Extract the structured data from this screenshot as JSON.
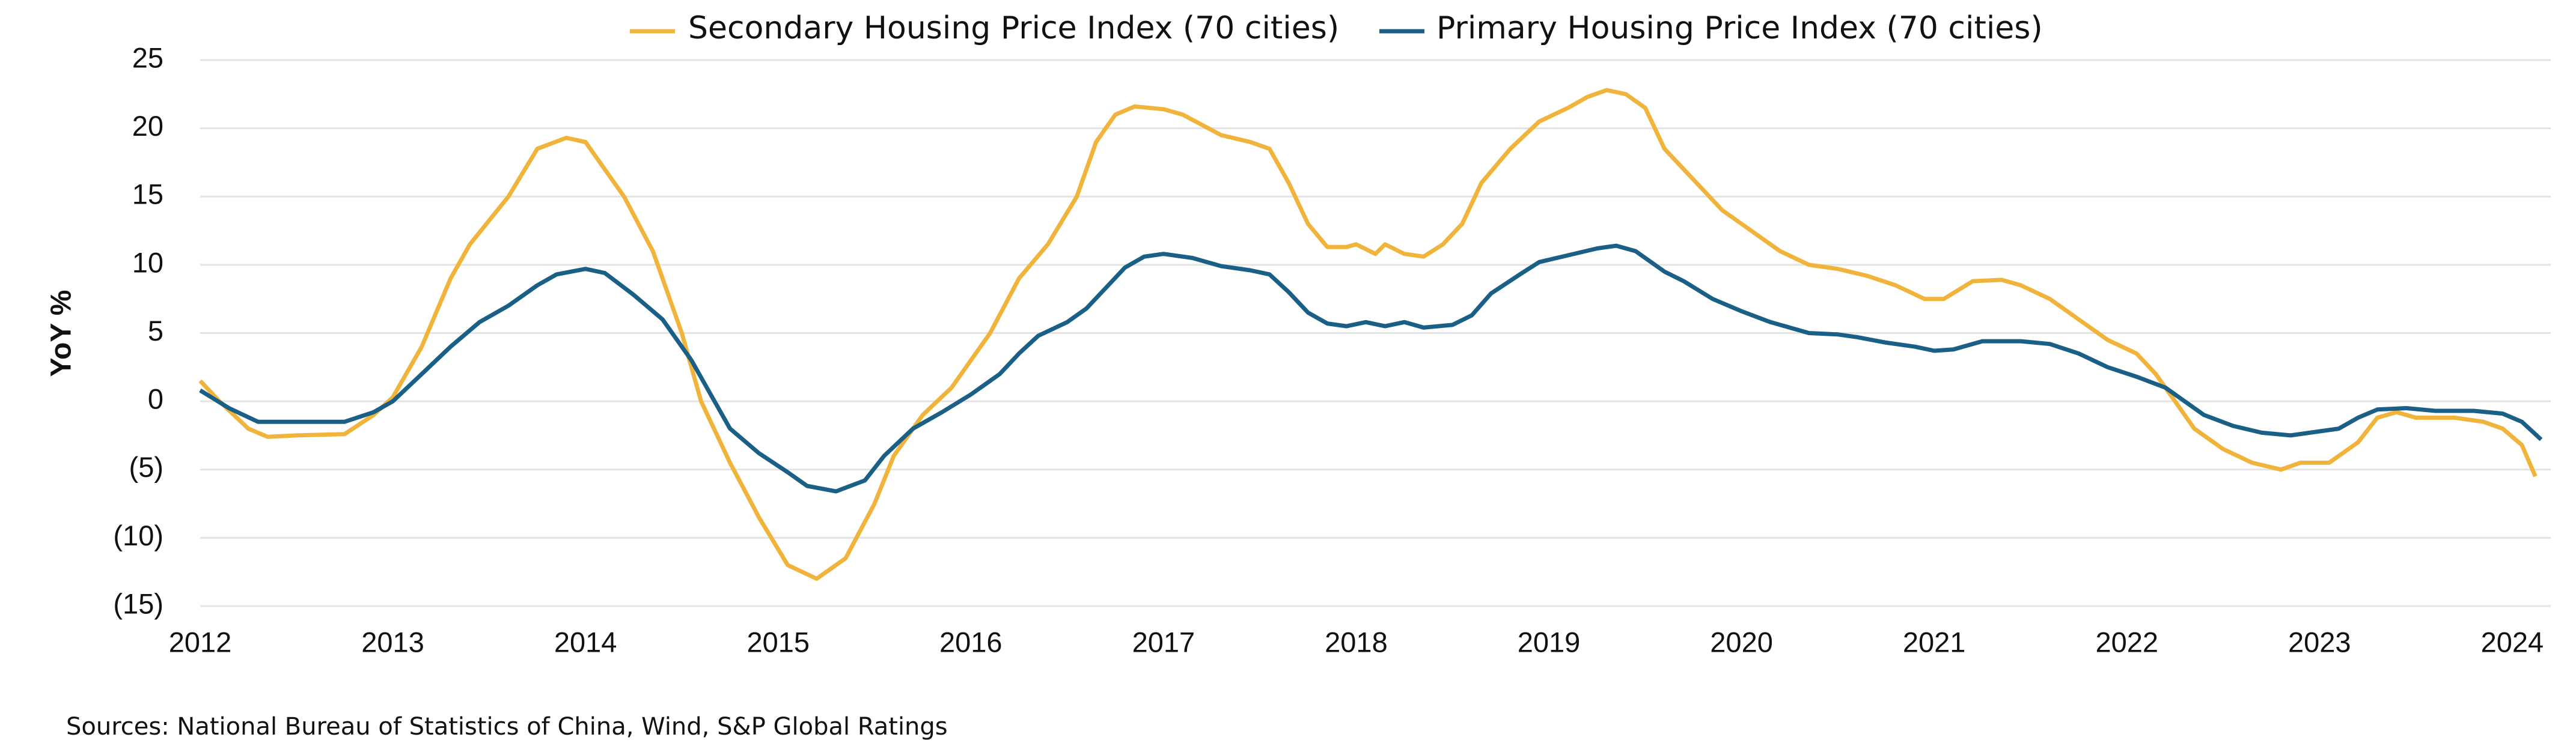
{
  "chart_data": {
    "type": "line",
    "ylabel": "YoY %",
    "source": "Sources: National Bureau of Statistics of China, Wind, S&P Global Ratings",
    "xlim": [
      2012,
      2024.2
    ],
    "xticks": [
      2012,
      2013,
      2014,
      2015,
      2016,
      2017,
      2018,
      2019,
      2020,
      2021,
      2022,
      2023,
      2024
    ],
    "ylim": [
      -15,
      25
    ],
    "yticks": [
      25,
      20,
      15,
      10,
      5,
      0,
      {
        "value": -5,
        "label": "(5)"
      },
      {
        "value": -10,
        "label": "(10)"
      },
      {
        "value": -15,
        "label": "(15)"
      }
    ],
    "grid": true,
    "legend": "top",
    "series": [
      {
        "name": "Secondary Housing Price Index (70 cities)",
        "color": "#f0b43c",
        "x": [
          2012.0,
          2012.1,
          2012.25,
          2012.35,
          2012.5,
          2012.75,
          2012.9,
          2013.0,
          2013.15,
          2013.3,
          2013.4,
          2013.6,
          2013.75,
          2013.9,
          2014.0,
          2014.1,
          2014.2,
          2014.35,
          2014.5,
          2014.6,
          2014.75,
          2014.9,
          2015.05,
          2015.2,
          2015.35,
          2015.5,
          2015.6,
          2015.75,
          2015.9,
          2016.1,
          2016.25,
          2016.4,
          2016.55,
          2016.65,
          2016.75,
          2016.85,
          2017.0,
          2017.1,
          2017.3,
          2017.45,
          2017.55,
          2017.65,
          2017.75,
          2017.85,
          2017.95,
          2018.0,
          2018.1,
          2018.15,
          2018.25,
          2018.35,
          2018.45,
          2018.55,
          2018.65,
          2018.8,
          2018.95,
          2019.1,
          2019.2,
          2019.3,
          2019.4,
          2019.5,
          2019.6,
          2019.7,
          2019.8,
          2019.9,
          2020.0,
          2020.1,
          2020.2,
          2020.35,
          2020.5,
          2020.65,
          2020.8,
          2020.95,
          2021.05,
          2021.2,
          2021.35,
          2021.45,
          2021.6,
          2021.75,
          2021.9,
          2022.05,
          2022.15,
          2022.25,
          2022.35,
          2022.5,
          2022.65,
          2022.8,
          2022.9,
          2023.05,
          2023.2,
          2023.3,
          2023.4,
          2023.5,
          2023.7,
          2023.85,
          2023.95,
          2024.05,
          2024.12
        ],
        "values": [
          1.5,
          0,
          -2,
          -2.6,
          -2.5,
          -2.4,
          -1,
          0.3,
          4,
          9,
          11.5,
          15,
          18.5,
          19.3,
          19,
          17,
          15,
          11,
          5,
          0,
          -4.5,
          -8.5,
          -12,
          -13,
          -11.5,
          -7.5,
          -4,
          -1,
          1,
          5,
          9,
          11.5,
          15,
          19,
          21,
          21.6,
          21.4,
          21,
          19.5,
          19,
          18.5,
          16,
          13,
          11.3,
          11.3,
          11.5,
          10.8,
          11.5,
          10.8,
          10.6,
          11.5,
          13,
          16,
          18.5,
          20.5,
          21.5,
          22.3,
          22.8,
          22.5,
          21.5,
          18.5,
          17,
          15.5,
          14,
          13,
          12,
          11,
          10,
          9.7,
          9.2,
          8.5,
          7.5,
          7.5,
          8.8,
          8.9,
          8.5,
          7.5,
          6,
          4.5,
          3.5,
          2,
          0,
          -2,
          -3.5,
          -4.5,
          -5,
          -4.5,
          -4.5,
          -3,
          -1.2,
          -0.8,
          -1.2,
          -1.2,
          -1.5,
          -2,
          -3.2,
          -5.5
        ]
      },
      {
        "name": "Primary Housing Price Index (70 cities)",
        "color": "#1a5f86",
        "x": [
          2012.0,
          2012.15,
          2012.3,
          2012.5,
          2012.75,
          2012.9,
          2013.0,
          2013.15,
          2013.3,
          2013.45,
          2013.6,
          2013.75,
          2013.85,
          2014.0,
          2014.1,
          2014.25,
          2014.4,
          2014.55,
          2014.65,
          2014.75,
          2014.9,
          2015.05,
          2015.15,
          2015.3,
          2015.45,
          2015.55,
          2015.7,
          2015.85,
          2016.0,
          2016.15,
          2016.25,
          2016.35,
          2016.5,
          2016.6,
          2016.7,
          2016.8,
          2016.9,
          2017.0,
          2017.15,
          2017.3,
          2017.45,
          2017.55,
          2017.65,
          2017.75,
          2017.85,
          2017.95,
          2018.05,
          2018.15,
          2018.25,
          2018.35,
          2018.5,
          2018.6,
          2018.7,
          2018.85,
          2018.95,
          2019.1,
          2019.25,
          2019.35,
          2019.45,
          2019.6,
          2019.7,
          2019.85,
          2020.0,
          2020.15,
          2020.35,
          2020.5,
          2020.6,
          2020.75,
          2020.9,
          2021.0,
          2021.1,
          2021.25,
          2021.45,
          2021.6,
          2021.75,
          2021.9,
          2022.05,
          2022.2,
          2022.3,
          2022.4,
          2022.55,
          2022.7,
          2022.85,
          2023.0,
          2023.1,
          2023.2,
          2023.3,
          2023.45,
          2023.6,
          2023.8,
          2023.95,
          2024.05,
          2024.15
        ],
        "values": [
          0.8,
          -0.5,
          -1.5,
          -1.5,
          -1.5,
          -0.8,
          0,
          2,
          4,
          5.8,
          7,
          8.5,
          9.3,
          9.7,
          9.4,
          7.8,
          6,
          3,
          0.5,
          -2,
          -3.8,
          -5.2,
          -6.2,
          -6.6,
          -5.8,
          -4,
          -2,
          -0.8,
          0.5,
          2,
          3.5,
          4.8,
          5.8,
          6.8,
          8.3,
          9.8,
          10.6,
          10.8,
          10.5,
          9.9,
          9.6,
          9.3,
          8,
          6.5,
          5.7,
          5.5,
          5.8,
          5.5,
          5.8,
          5.4,
          5.6,
          6.3,
          7.9,
          9.3,
          10.2,
          10.7,
          11.2,
          11.4,
          11,
          9.5,
          8.8,
          7.5,
          6.6,
          5.8,
          5,
          4.9,
          4.7,
          4.3,
          4,
          3.7,
          3.8,
          4.4,
          4.4,
          4.2,
          3.5,
          2.5,
          1.8,
          1,
          0,
          -1,
          -1.8,
          -2.3,
          -2.5,
          -2.2,
          -2,
          -1.2,
          -0.6,
          -0.5,
          -0.7,
          -0.7,
          -0.9,
          -1.5,
          -2.8
        ]
      }
    ]
  }
}
